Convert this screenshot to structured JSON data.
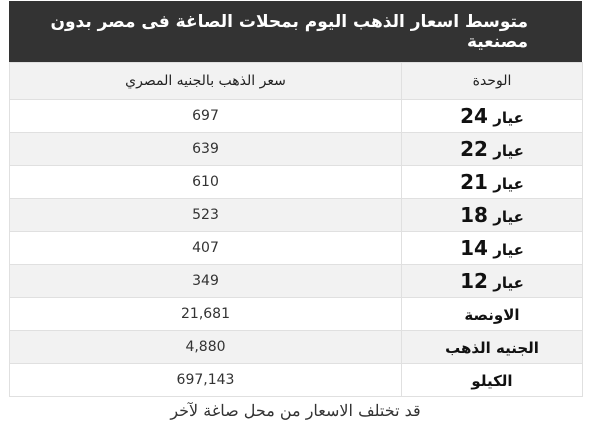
{
  "title": "متوسط اسعار الذهب اليوم بمحلات الصاغة فى مصر بدون مصنعية",
  "headers": {
    "price": "سعر الذهب بالجنيه المصري",
    "unit": "الوحدة"
  },
  "rows": [
    {
      "label": "عيار",
      "num": "24",
      "price": "697"
    },
    {
      "label": "عيار",
      "num": "22",
      "price": "639"
    },
    {
      "label": "عيار",
      "num": "21",
      "price": "610"
    },
    {
      "label": "عيار",
      "num": "18",
      "price": "523"
    },
    {
      "label": "عيار",
      "num": "14",
      "price": "407"
    },
    {
      "label": "عيار",
      "num": "12",
      "price": "349"
    },
    {
      "label": "الاونصة",
      "num": "",
      "price": "21,681"
    },
    {
      "label": "الجنيه الذهب",
      "num": "",
      "price": "4,880"
    },
    {
      "label": "الكيلو",
      "num": "",
      "price": "697,143"
    }
  ],
  "note": "قد تختلف الاسعار من محل صاغة لآخر"
}
